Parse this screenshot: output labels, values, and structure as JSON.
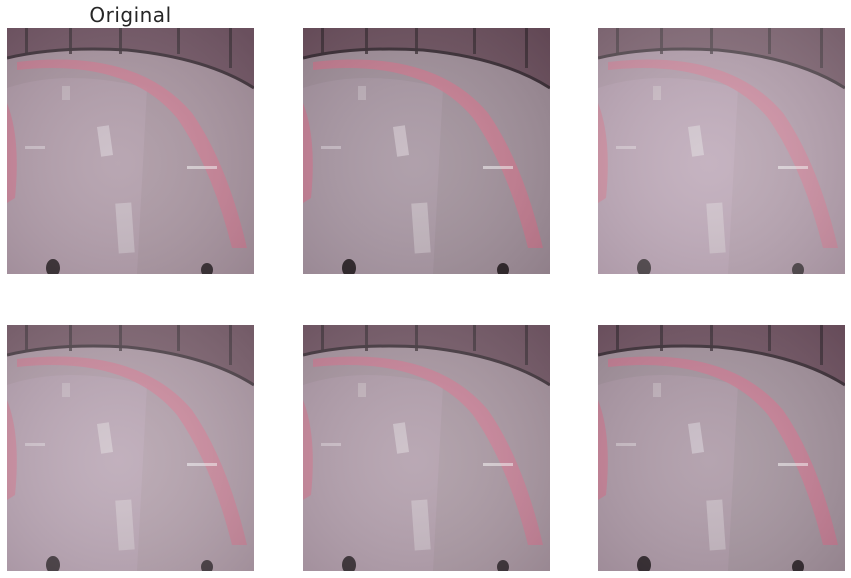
{
  "figure": {
    "panels": [
      {
        "id": "p1",
        "title": "Original",
        "tint": "#a78d9c",
        "haze": 0.1
      },
      {
        "id": "p2",
        "title": "",
        "tint": "#968a92",
        "haze": 0.05
      },
      {
        "id": "p3",
        "title": "",
        "tint": "#b592ad",
        "haze": 0.22
      },
      {
        "id": "p4",
        "title": "",
        "tint": "#b395aa",
        "haze": 0.18
      },
      {
        "id": "p5",
        "title": "",
        "tint": "#a38c9b",
        "haze": 0.12
      },
      {
        "id": "p6",
        "title": "",
        "tint": "#9f8b98",
        "haze": 0.08
      }
    ],
    "palette": {
      "wall": "#5a3b4a",
      "floor": "#9e8c97",
      "floor_light": "#b69db0",
      "curb": "#c9718a",
      "lane_mark": "#cfc5cc",
      "post": "#2b1f26"
    }
  }
}
